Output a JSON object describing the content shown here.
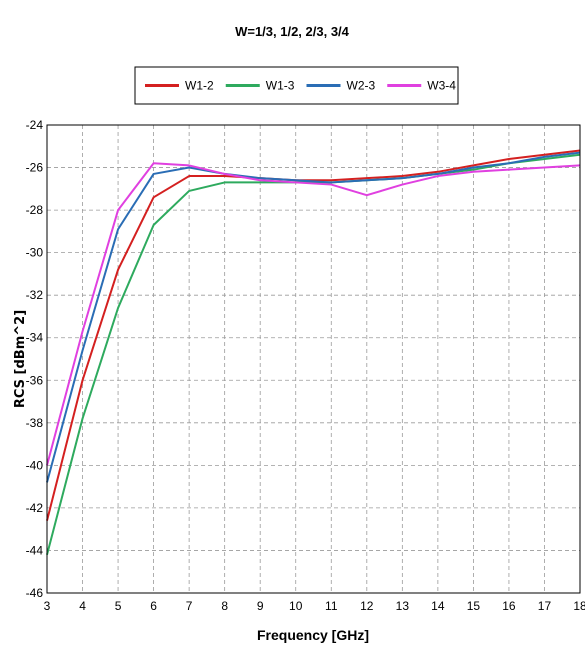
{
  "chart_data": {
    "type": "line",
    "title": "W=1/3, 1/2, 2/3, 3/4",
    "xlabel": "Frequency [GHz]",
    "ylabel": "RCS [dBm^2]",
    "xlim": [
      3,
      18
    ],
    "ylim": [
      -46,
      -24
    ],
    "xticks": [
      3,
      4,
      5,
      6,
      7,
      8,
      9,
      10,
      11,
      12,
      13,
      14,
      15,
      16,
      17,
      18
    ],
    "yticks": [
      -46,
      -44,
      -42,
      -40,
      -38,
      -36,
      -34,
      -32,
      -30,
      -28,
      -26,
      -24
    ],
    "grid": true,
    "legend_position": "top-center",
    "x": [
      3,
      4,
      5,
      6,
      7,
      8,
      9,
      10,
      11,
      12,
      13,
      14,
      15,
      16,
      17,
      18
    ],
    "series": [
      {
        "name": "W1-2",
        "color": "#d42020",
        "values": [
          -42.6,
          -36.0,
          -30.8,
          -27.4,
          -26.4,
          -26.4,
          -26.5,
          -26.6,
          -26.6,
          -26.5,
          -26.4,
          -26.2,
          -25.9,
          -25.6,
          -25.4,
          -25.2
        ]
      },
      {
        "name": "W1-3",
        "color": "#2eaa5e",
        "values": [
          -44.2,
          -37.8,
          -32.6,
          -28.7,
          -27.1,
          -26.7,
          -26.7,
          -26.7,
          -26.7,
          -26.6,
          -26.5,
          -26.3,
          -26.1,
          -25.8,
          -25.6,
          -25.4
        ]
      },
      {
        "name": "W2-3",
        "color": "#2a6db5",
        "values": [
          -40.8,
          -34.6,
          -28.9,
          -26.3,
          -26.0,
          -26.3,
          -26.5,
          -26.6,
          -26.7,
          -26.6,
          -26.5,
          -26.3,
          -26.0,
          -25.8,
          -25.5,
          -25.3
        ]
      },
      {
        "name": "W3-4",
        "color": "#e040e0",
        "values": [
          -40.0,
          -33.7,
          -28.0,
          -25.8,
          -25.9,
          -26.3,
          -26.6,
          -26.7,
          -26.8,
          -27.3,
          -26.8,
          -26.4,
          -26.2,
          -26.1,
          -26.0,
          -25.9
        ]
      }
    ]
  }
}
